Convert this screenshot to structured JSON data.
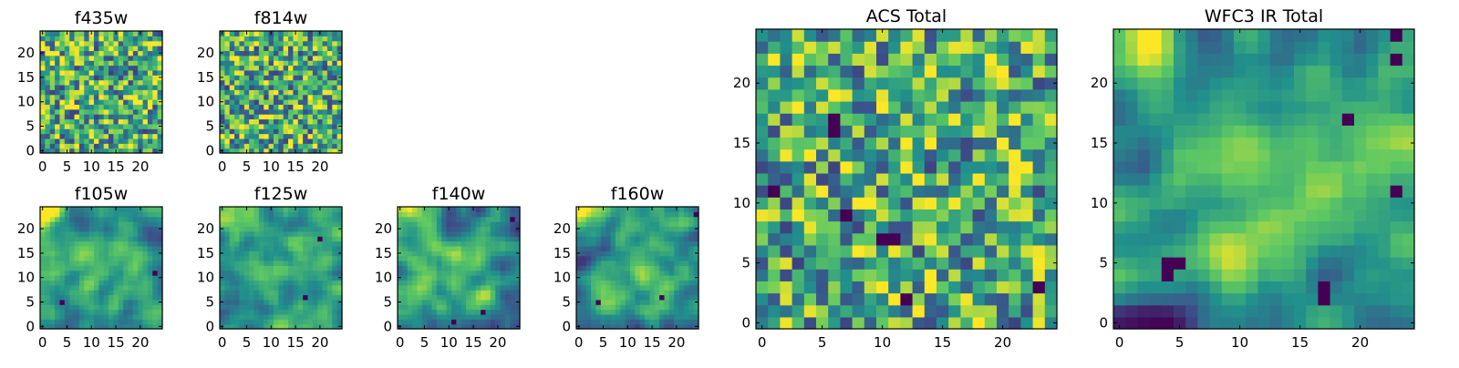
{
  "figure": {
    "description_type": "image grid of filter cutouts",
    "colormap": [
      "#440154",
      "#3b528b",
      "#21918c",
      "#5ec962",
      "#fde725"
    ]
  },
  "chart_data": [
    {
      "type": "heatmap",
      "title": "f435w",
      "grid_size": 25,
      "xlim": [
        0,
        25
      ],
      "ylim": [
        0,
        25
      ],
      "xticks": [
        0,
        5,
        10,
        15,
        20
      ],
      "yticks": [
        0,
        5,
        10,
        15,
        20
      ],
      "style": "noise",
      "seed": 11
    },
    {
      "type": "heatmap",
      "title": "f814w",
      "grid_size": 25,
      "xlim": [
        0,
        25
      ],
      "ylim": [
        0,
        25
      ],
      "xticks": [
        0,
        5,
        10,
        15,
        20
      ],
      "yticks": [
        0,
        5,
        10,
        15,
        20
      ],
      "style": "noise",
      "seed": 23
    },
    {
      "type": "heatmap",
      "title": "f105w",
      "grid_size": 25,
      "xlim": [
        0,
        25
      ],
      "ylim": [
        0,
        25
      ],
      "xticks": [
        0,
        5,
        10,
        15,
        20
      ],
      "yticks": [
        0,
        5,
        10,
        15,
        20
      ],
      "style": "smooth",
      "seed": 37,
      "bright_corner": "top-left",
      "dark_spots": [
        [
          4,
          5
        ],
        [
          23,
          11
        ]
      ]
    },
    {
      "type": "heatmap",
      "title": "f125w",
      "grid_size": 25,
      "xlim": [
        0,
        25
      ],
      "ylim": [
        0,
        25
      ],
      "xticks": [
        0,
        5,
        10,
        15,
        20
      ],
      "yticks": [
        0,
        5,
        10,
        15,
        20
      ],
      "style": "smooth",
      "seed": 41,
      "bright_corner": "top-left",
      "dark_spots": [
        [
          20,
          18
        ],
        [
          17,
          6
        ]
      ]
    },
    {
      "type": "heatmap",
      "title": "f140w",
      "grid_size": 25,
      "xlim": [
        0,
        25
      ],
      "ylim": [
        0,
        25
      ],
      "xticks": [
        0,
        5,
        10,
        15,
        20
      ],
      "yticks": [
        0,
        5,
        10,
        15,
        20
      ],
      "style": "smooth",
      "seed": 53,
      "bright_corner": "top-left",
      "dark_spots": [
        [
          23,
          22
        ],
        [
          11,
          1
        ],
        [
          17,
          3
        ]
      ]
    },
    {
      "type": "heatmap",
      "title": "f160w",
      "grid_size": 25,
      "xlim": [
        0,
        25
      ],
      "ylim": [
        0,
        25
      ],
      "xticks": [
        0,
        5,
        10,
        15,
        20
      ],
      "yticks": [
        0,
        5,
        10,
        15,
        20
      ],
      "style": "smooth",
      "seed": 67,
      "bright_corner": "top-left",
      "dark_spots": [
        [
          4,
          5
        ],
        [
          17,
          6
        ],
        [
          24,
          23
        ]
      ]
    },
    {
      "type": "heatmap",
      "title": "ACS Total",
      "grid_size": 25,
      "xlim": [
        0,
        25
      ],
      "ylim": [
        0,
        25
      ],
      "xticks": [
        0,
        5,
        10,
        15,
        20
      ],
      "yticks": [
        0,
        5,
        10,
        15,
        20
      ],
      "style": "noise",
      "seed": 79,
      "dark_spots": [
        [
          6,
          17
        ],
        [
          6,
          16
        ],
        [
          7,
          9
        ],
        [
          10,
          7
        ],
        [
          11,
          7
        ],
        [
          23,
          3
        ],
        [
          12,
          2
        ],
        [
          1,
          11
        ]
      ]
    },
    {
      "type": "heatmap",
      "title": "WFC3 IR Total",
      "grid_size": 25,
      "xlim": [
        0,
        25
      ],
      "ylim": [
        0,
        25
      ],
      "xticks": [
        0,
        5,
        10,
        15,
        20
      ],
      "yticks": [
        0,
        5,
        10,
        15,
        20
      ],
      "style": "smooth",
      "seed": 97,
      "bright_corner": "top-left",
      "dark_spots": [
        [
          4,
          5
        ],
        [
          5,
          5
        ],
        [
          4,
          4
        ],
        [
          17,
          2
        ],
        [
          17,
          3
        ],
        [
          19,
          17
        ],
        [
          23,
          11
        ],
        [
          23,
          24
        ],
        [
          23,
          22
        ]
      ]
    }
  ]
}
